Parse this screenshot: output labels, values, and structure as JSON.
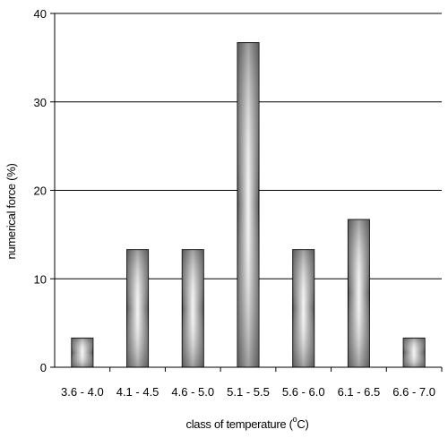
{
  "chart_data": {
    "type": "bar",
    "categories": [
      "3.6 - 4.0",
      "4.1 - 4.5",
      "4.6 - 5.0",
      "5.1 - 5.5",
      "5.6 - 6.0",
      "6.1 - 6.5",
      "6.6 - 7.0"
    ],
    "values": [
      3.3,
      13.3,
      13.3,
      36.7,
      13.3,
      16.7,
      3.3
    ],
    "ylim": [
      0,
      40
    ],
    "yticks": [
      0,
      10,
      20,
      30,
      40
    ],
    "ylabel": "numerical force (%)",
    "xlabel_main": "class of temperature (",
    "xlabel_sup": "o",
    "xlabel_end": "C)",
    "grid": true,
    "bar_color": "#808080"
  }
}
